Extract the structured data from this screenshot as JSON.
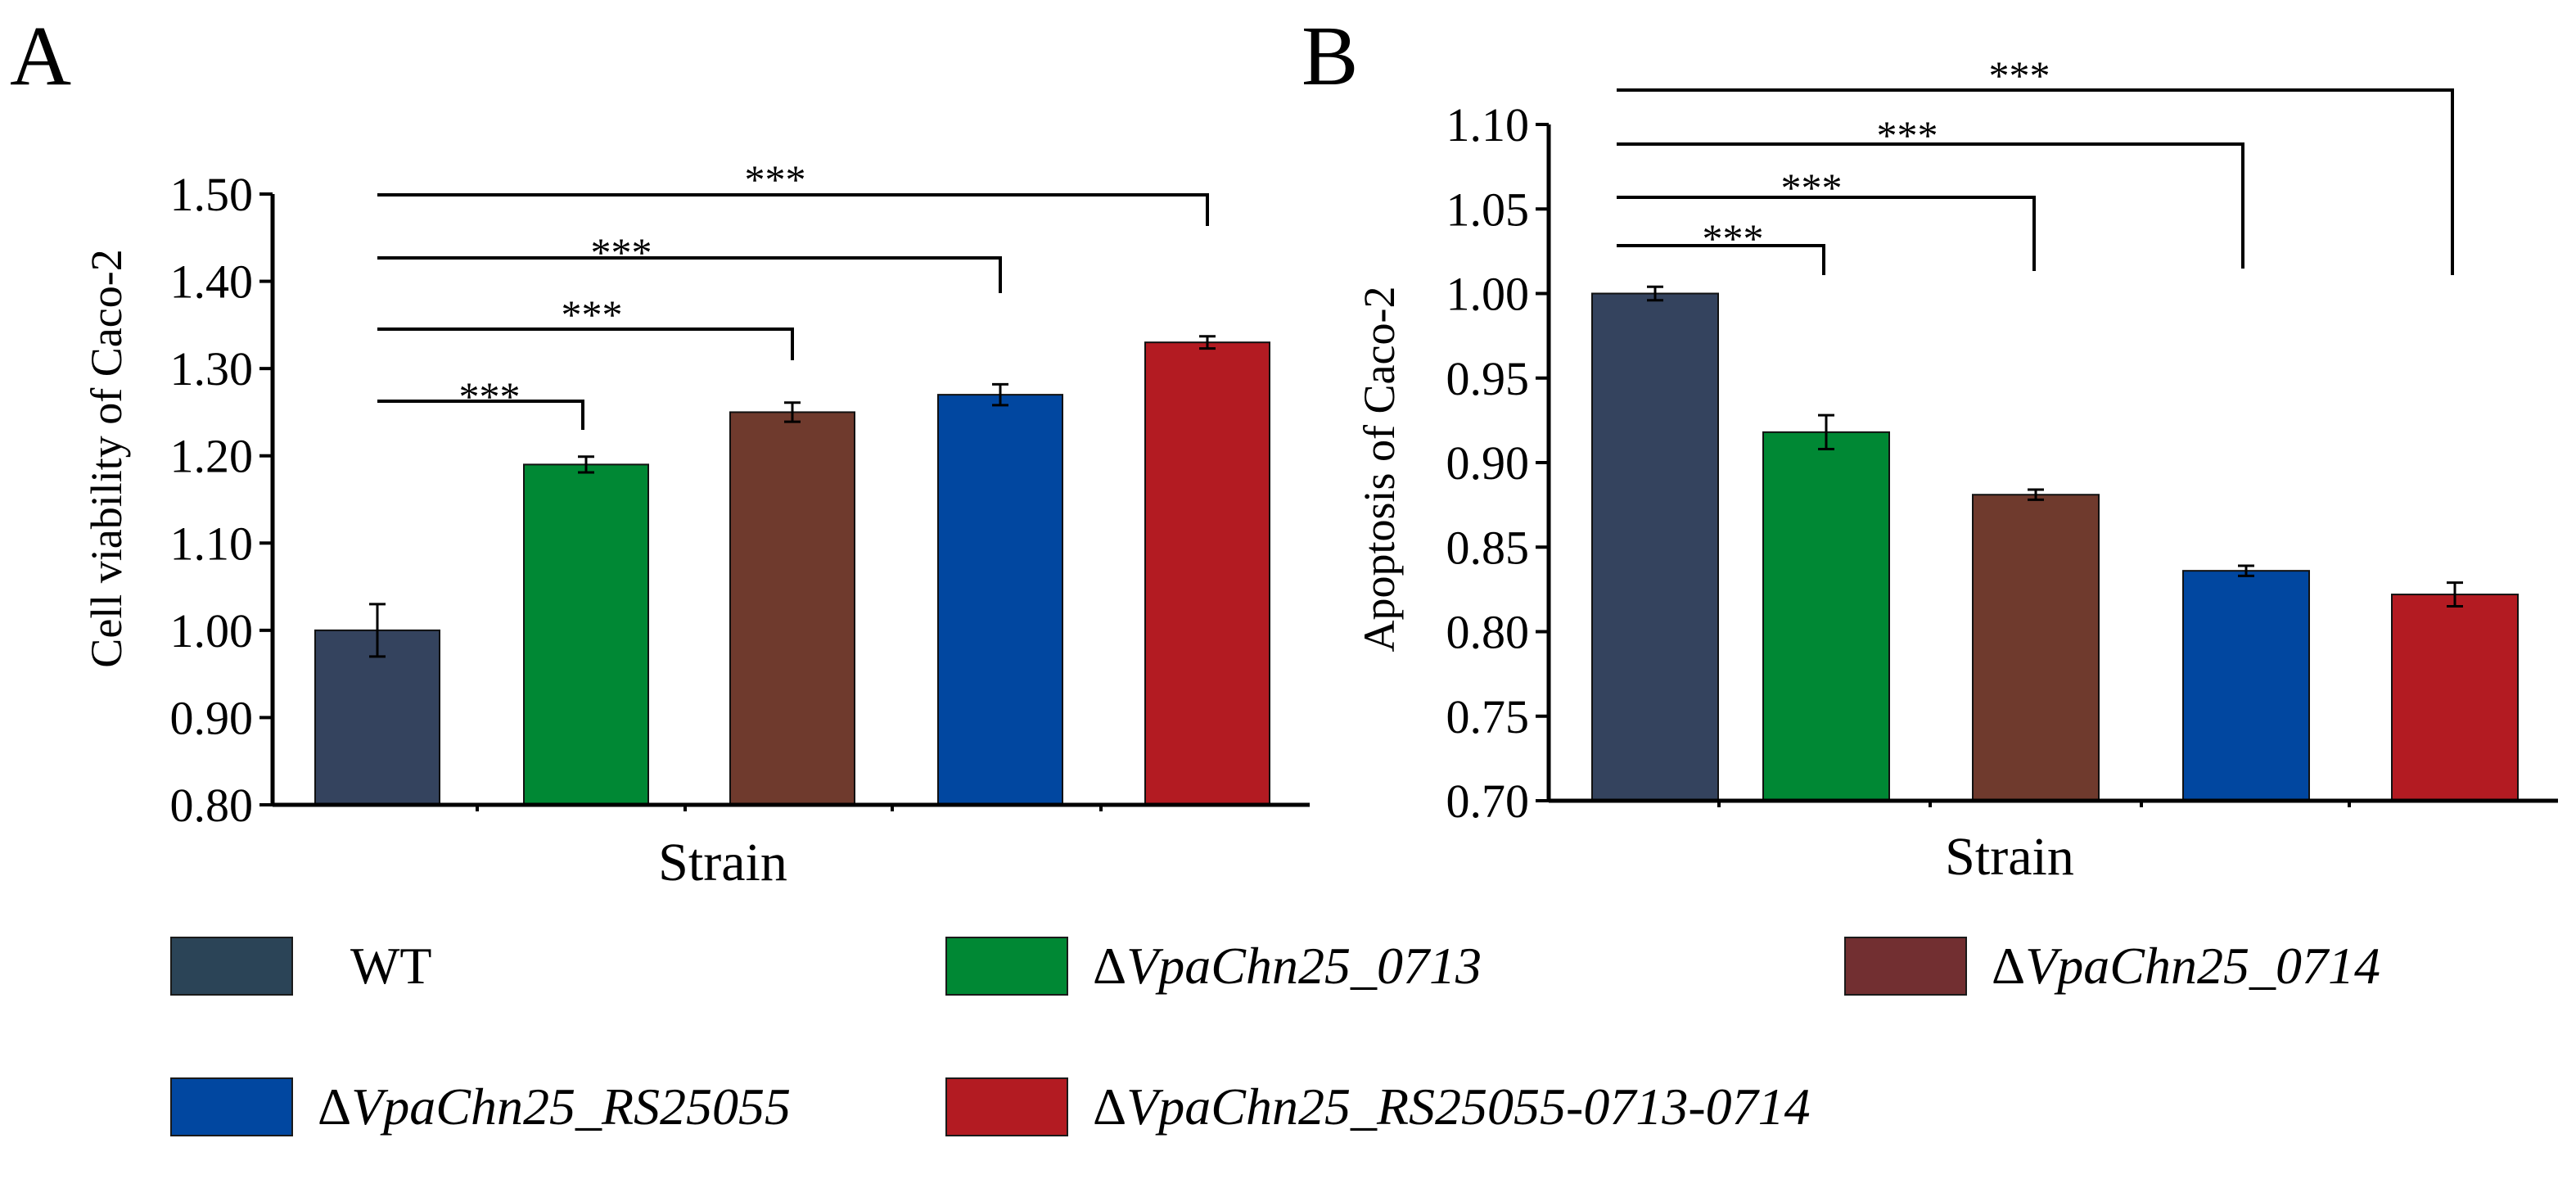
{
  "chart_data": [
    {
      "panel": "A",
      "type": "bar",
      "categories": [
        "WT",
        "ΔVpaChn25_0713",
        "ΔVpaChn25_0714",
        "ΔVpaChn25_RS25055",
        "ΔVpaChn25_RS25055-0713-0714"
      ],
      "values": [
        1.0,
        1.19,
        1.25,
        1.27,
        1.33
      ],
      "errors": [
        0.03,
        0.009,
        0.011,
        0.012,
        0.007
      ],
      "colors": [
        "#34435e",
        "#008834",
        "#6f3a2d",
        "#0147a0",
        "#b31b22"
      ],
      "xlabel": "Strain",
      "ylabel": "Cell viability of Caco-2",
      "ylim": [
        0.8,
        1.5
      ],
      "yticks": [
        "0.80",
        "0.90",
        "1.00",
        "1.10",
        "1.20",
        "1.30",
        "1.40",
        "1.50"
      ],
      "significance": [
        {
          "from": 0,
          "to": 1,
          "label": "***"
        },
        {
          "from": 0,
          "to": 2,
          "label": "***"
        },
        {
          "from": 0,
          "to": 3,
          "label": "***"
        },
        {
          "from": 0,
          "to": 4,
          "label": "***"
        }
      ]
    },
    {
      "panel": "B",
      "type": "bar",
      "categories": [
        "WT",
        "ΔVpaChn25_0713",
        "ΔVpaChn25_0714",
        "ΔVpaChn25_RS25055",
        "ΔVpaChn25_RS25055-0713-0714"
      ],
      "values": [
        1.0,
        0.918,
        0.881,
        0.836,
        0.822
      ],
      "errors": [
        0.004,
        0.01,
        0.003,
        0.003,
        0.007
      ],
      "colors": [
        "#34435e",
        "#008834",
        "#6f3a2d",
        "#0147a0",
        "#b31b22"
      ],
      "xlabel": "Strain",
      "ylabel": "Apoptosis of Caco-2",
      "ylim": [
        0.7,
        1.1
      ],
      "yticks": [
        "0.70",
        "0.75",
        "0.80",
        "0.85",
        "0.90",
        "0.95",
        "1.00",
        "1.05",
        "1.10"
      ],
      "significance": [
        {
          "from": 0,
          "to": 1,
          "label": "***"
        },
        {
          "from": 0,
          "to": 2,
          "label": "***"
        },
        {
          "from": 0,
          "to": 3,
          "label": "***"
        },
        {
          "from": 0,
          "to": 4,
          "label": "***"
        }
      ]
    }
  ],
  "legend": {
    "items": [
      {
        "prefix": "",
        "label": "WT",
        "color": "#2b4457"
      },
      {
        "prefix": "Δ",
        "label": "VpaChn25_0713",
        "color": "#008834"
      },
      {
        "prefix": "Δ",
        "label": "VpaChn25_0714",
        "color": "#722f31"
      },
      {
        "prefix": "Δ",
        "label": "VpaChn25_RS25055",
        "color": "#0147a0"
      },
      {
        "prefix": "Δ",
        "label": "VpaChn25_RS25055-0713-0714",
        "color": "#b31b22"
      }
    ]
  }
}
